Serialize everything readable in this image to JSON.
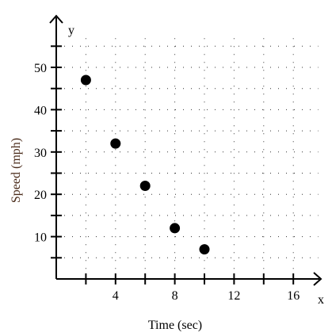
{
  "chart_data": {
    "type": "scatter",
    "xlabel": "Time (sec)",
    "ylabel": "Speed (mph)",
    "x_axis_letter": "x",
    "y_axis_letter": "y",
    "xlim": [
      0,
      18
    ],
    "ylim": [
      0,
      58
    ],
    "x_major_ticks": [
      2,
      4,
      6,
      8,
      10,
      12,
      14,
      16
    ],
    "x_tick_labels": [
      {
        "value": 4,
        "label": "4"
      },
      {
        "value": 8,
        "label": "8"
      },
      {
        "value": 12,
        "label": "12"
      },
      {
        "value": 16,
        "label": "16"
      }
    ],
    "y_major_ticks": [
      5,
      10,
      15,
      20,
      25,
      30,
      35,
      40,
      45,
      50,
      55
    ],
    "y_tick_labels": [
      {
        "value": 10,
        "label": "10"
      },
      {
        "value": 20,
        "label": "20"
      },
      {
        "value": 30,
        "label": "30"
      },
      {
        "value": 40,
        "label": "40"
      },
      {
        "value": 50,
        "label": "50"
      }
    ],
    "grid": "dotted",
    "x": [
      2,
      4,
      6,
      8,
      10
    ],
    "y": [
      47,
      32,
      22,
      12,
      7
    ],
    "colors": {
      "axes": "#000000",
      "points": "#000000",
      "labels": "#000000",
      "ylabel": "#4a2b1a",
      "grid": "#333333"
    }
  }
}
